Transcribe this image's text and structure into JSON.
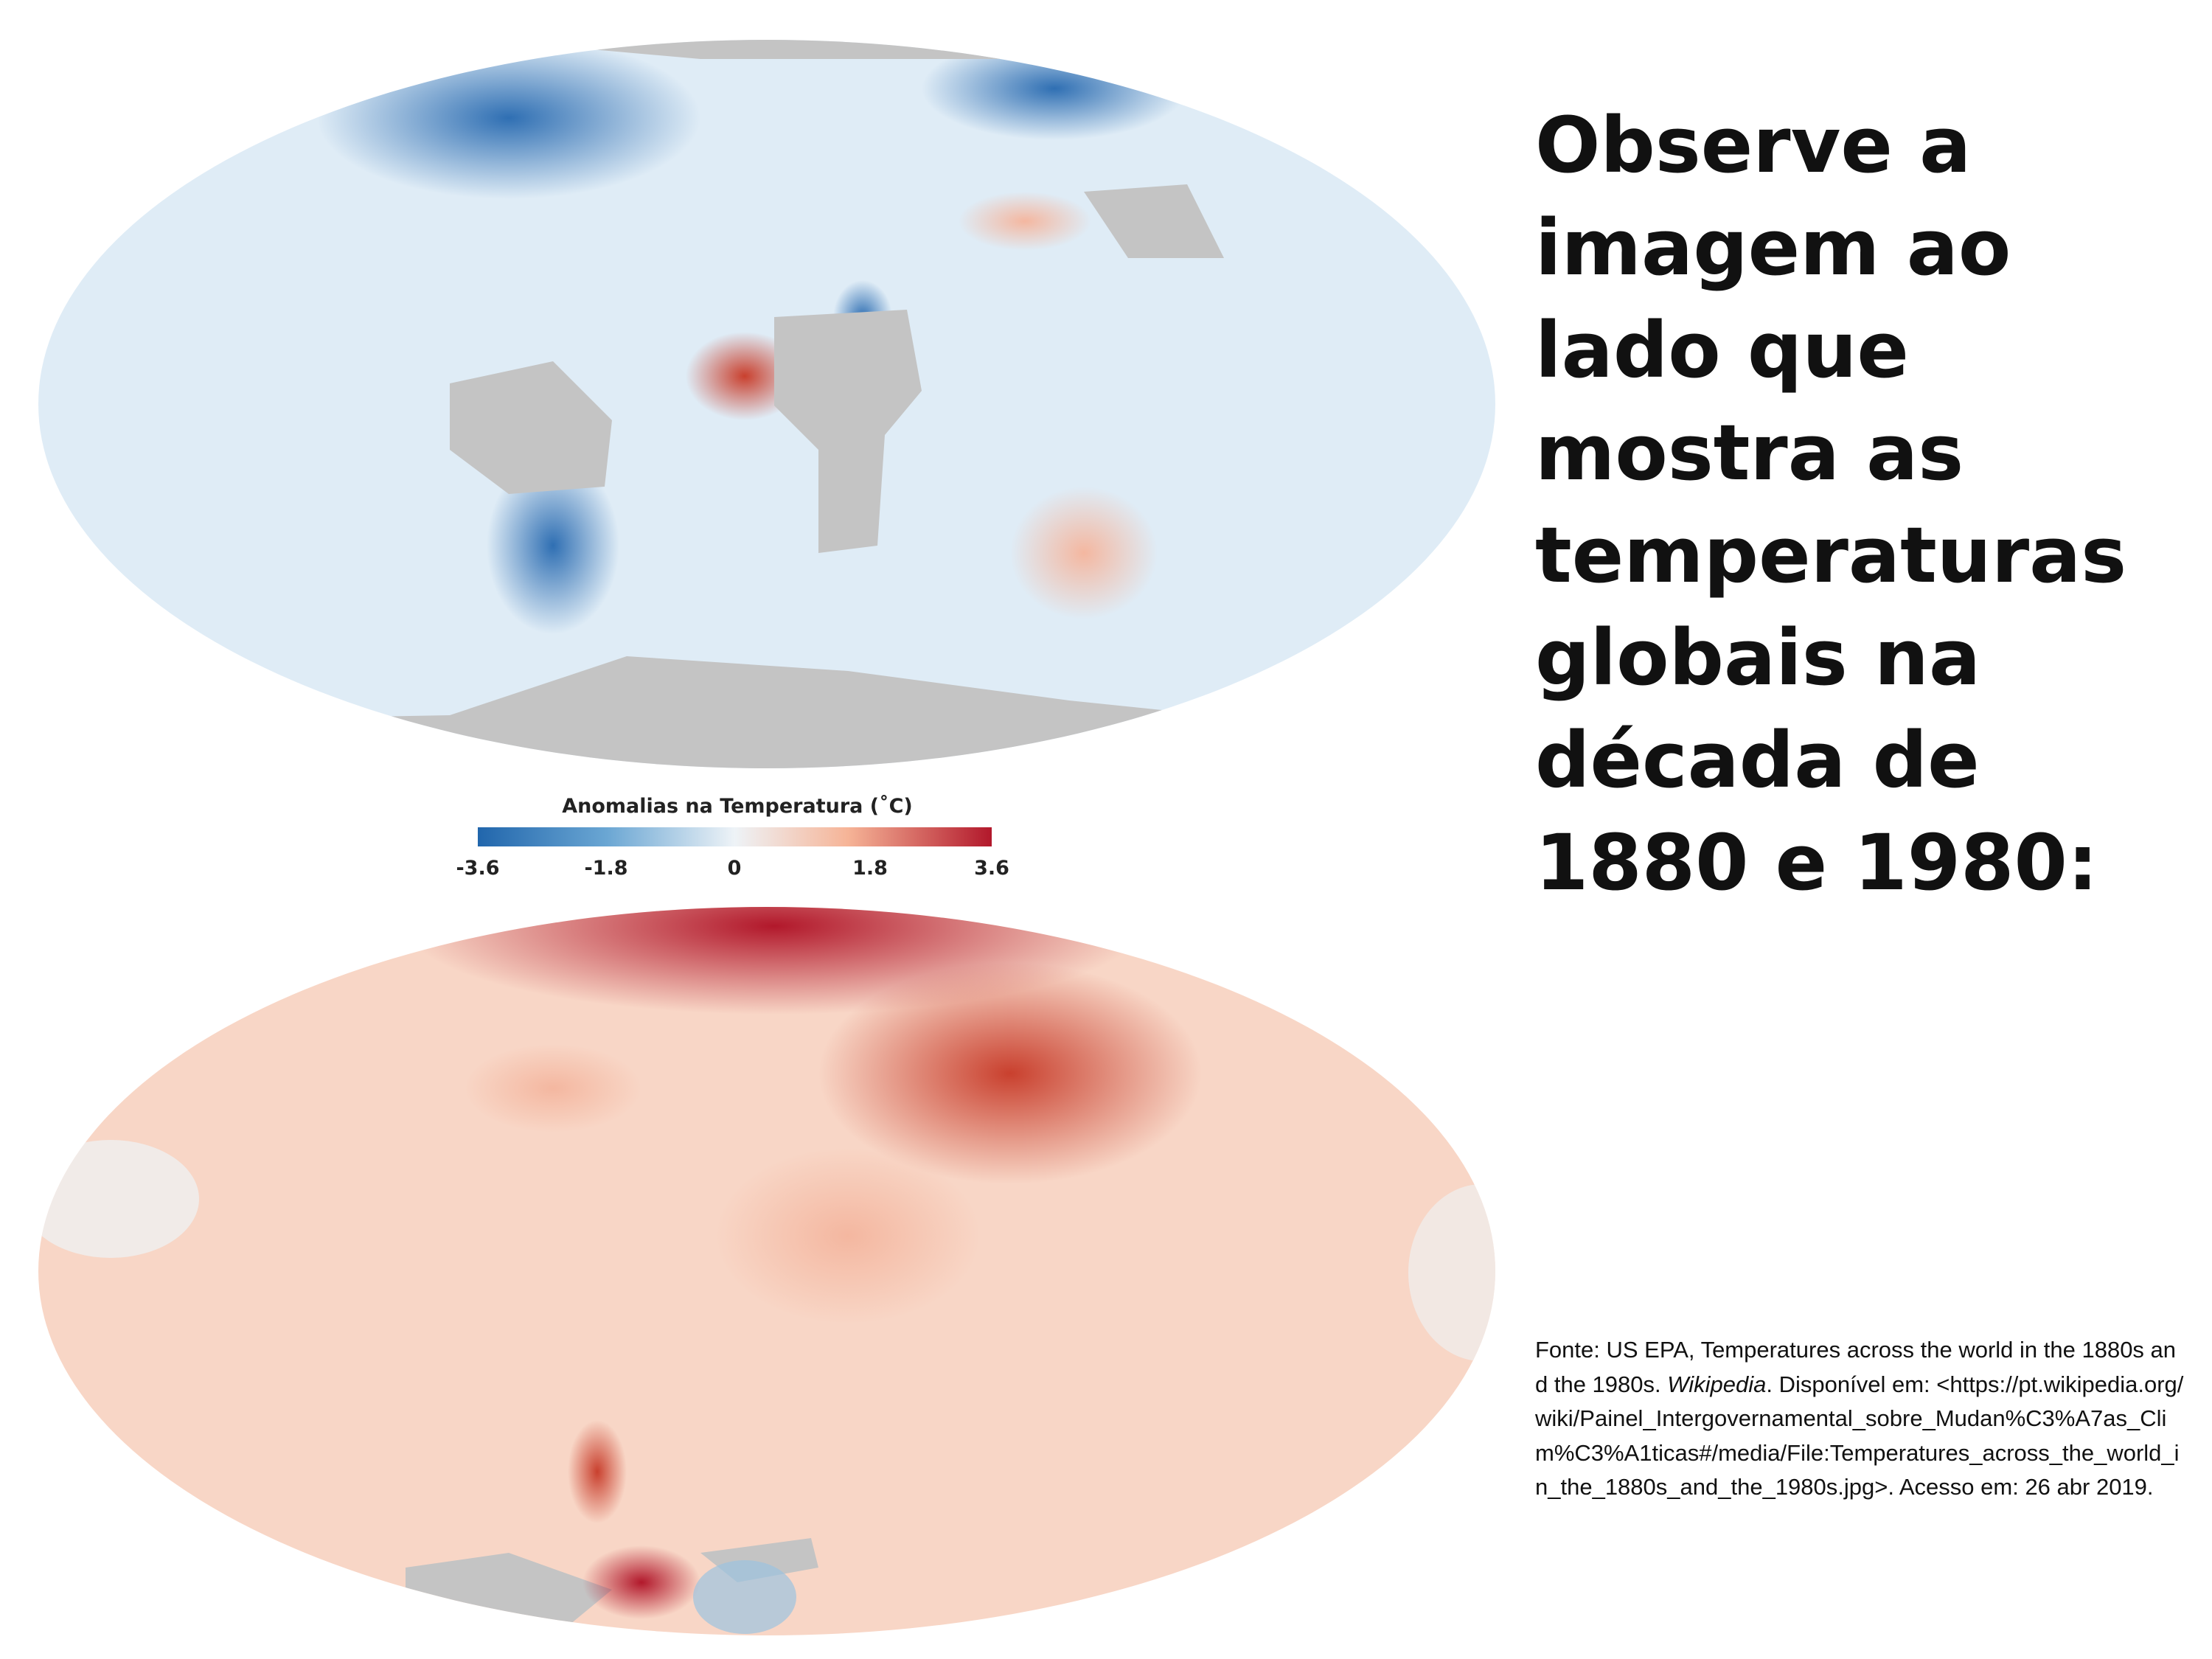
{
  "heading": "Observe a imagem ao lado que mostra as temperaturas globais na década de 1880 e 1980:",
  "legend": {
    "title": "Anomalias na Temperatura (˚C)",
    "ticks": [
      "-3.6",
      "-1.8",
      "0",
      "1.8",
      "3.6"
    ],
    "range": [
      -3.6,
      3.6
    ],
    "colors": {
      "min": "#2166ac",
      "mid": "#eef3f7",
      "max": "#b2182b",
      "no_data": "#c4c4c4"
    }
  },
  "maps": [
    {
      "decade": "1880s",
      "dominant": "cool",
      "base_color": "#dbe9f4"
    },
    {
      "decade": "1980s",
      "dominant": "warm",
      "base_color": "#f7cfbd"
    }
  ],
  "source": {
    "prefix": "Fonte: US EPA, Temperatures across the world in the 1880s and the 1980s. ",
    "italic": "Wikipedia",
    "suffix": ". Disponível em: <https://pt.wikipedia.org/wiki/Painel_Intergovernamental_sobre_Mudan%C3%A7as_Clim%C3%A1ticas#/media/File:Temperatures_across_the_world_in_the_1880s_and_the_1980s.jpg>. Acesso em: 26 abr 2019."
  }
}
